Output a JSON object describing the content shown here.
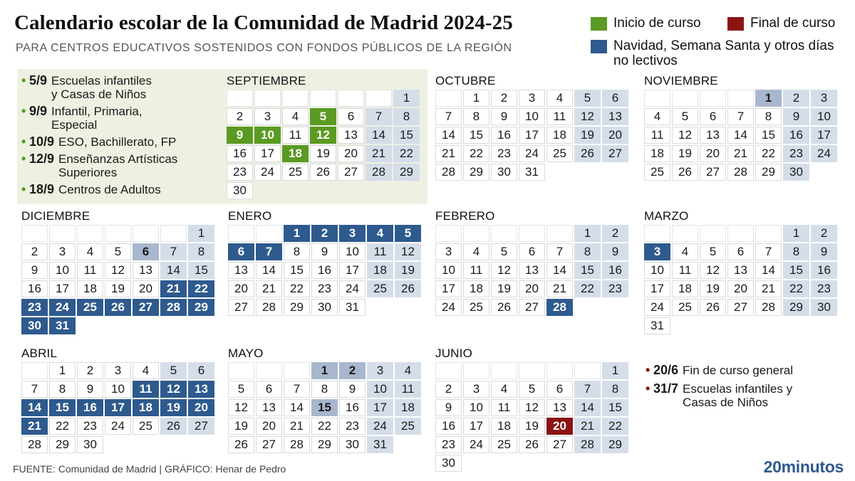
{
  "header": {
    "title": "Calendario escolar de la Comunidad de Madrid 2024-25",
    "subtitle": "PARA CENTROS EDUCATIVOS SOSTENIDOS CON FONDOS PÚBLICOS DE LA REGIÓN"
  },
  "legend": {
    "inicio": "Inicio de curso",
    "final": "Final de curso",
    "navidad": "Navidad,  Semana Santa y otros días no lectivos"
  },
  "colors": {
    "inicio": "#5a9a22",
    "final": "#8b1412",
    "navidad": "#2e5a8e",
    "weekend": "#d5dde9",
    "other_holiday": "#a8b7cd",
    "info_box": "#eef1e2"
  },
  "start_dates": [
    {
      "date": "5/9",
      "desc": "Escuelas infantiles y Casas de Niños"
    },
    {
      "date": "9/9",
      "desc": "Infantil, Primaria, Especial"
    },
    {
      "date": "10/9",
      "desc": "ESO, Bachillerato, FP"
    },
    {
      "date": "12/9",
      "desc": "Enseñanzas Artísticas Superiores"
    },
    {
      "date": "18/9",
      "desc": "Centros de Adultos"
    }
  ],
  "end_dates": [
    {
      "date": "20/6",
      "desc": "Fin de curso general"
    },
    {
      "date": "31/7",
      "desc": "Escuelas infantiles y Casas de Niños"
    }
  ],
  "months": [
    {
      "name": "SEPTIEMBRE",
      "offset": 6,
      "days": 30,
      "inicio": [
        5,
        9,
        10,
        12,
        18
      ],
      "navidad": [],
      "final": [],
      "other": []
    },
    {
      "name": "OCTUBRE",
      "offset": 1,
      "days": 31,
      "inicio": [],
      "navidad": [],
      "final": [],
      "other": []
    },
    {
      "name": "NOVIEMBRE",
      "offset": 4,
      "days": 30,
      "inicio": [],
      "navidad": [],
      "final": [],
      "other": [
        1
      ]
    },
    {
      "name": "DICIEMBRE",
      "offset": 6,
      "days": 31,
      "inicio": [],
      "navidad": [
        21,
        22,
        23,
        24,
        25,
        26,
        27,
        28,
        29,
        30,
        31
      ],
      "final": [],
      "other": [
        6
      ]
    },
    {
      "name": "ENERO",
      "offset": 2,
      "days": 31,
      "inicio": [],
      "navidad": [
        1,
        2,
        3,
        4,
        5,
        6,
        7
      ],
      "final": [],
      "other": []
    },
    {
      "name": "FEBRERO",
      "offset": 5,
      "days": 28,
      "inicio": [],
      "navidad": [
        28
      ],
      "final": [],
      "other": []
    },
    {
      "name": "MARZO",
      "offset": 5,
      "days": 31,
      "inicio": [],
      "navidad": [
        3
      ],
      "final": [],
      "other": []
    },
    {
      "name": "ABRIL",
      "offset": 1,
      "days": 30,
      "inicio": [],
      "navidad": [
        11,
        12,
        13,
        14,
        15,
        16,
        17,
        18,
        19,
        20,
        21
      ],
      "final": [],
      "other": []
    },
    {
      "name": "MAYO",
      "offset": 3,
      "days": 31,
      "inicio": [],
      "navidad": [],
      "final": [],
      "other": [
        1,
        2,
        15
      ]
    },
    {
      "name": "JUNIO",
      "offset": 6,
      "days": 30,
      "inicio": [],
      "navidad": [],
      "final": [
        20
      ],
      "other": []
    }
  ],
  "footer": {
    "source": "FUENTE: Comunidad de Madrid  |  GRÁFICO: Henar de Pedro",
    "brand": "20minutos"
  }
}
